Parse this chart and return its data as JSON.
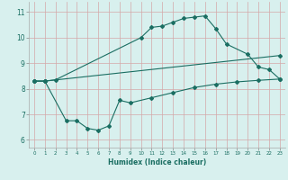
{
  "title": "",
  "xlabel": "Humidex (Indice chaleur)",
  "ylabel": "",
  "xlim": [
    -0.5,
    23.5
  ],
  "ylim": [
    5.7,
    11.4
  ],
  "yticks": [
    6,
    7,
    8,
    9,
    10,
    11
  ],
  "xticks": [
    0,
    1,
    2,
    3,
    4,
    5,
    6,
    7,
    8,
    9,
    10,
    11,
    12,
    13,
    14,
    15,
    16,
    17,
    18,
    19,
    20,
    21,
    22,
    23
  ],
  "bg_color": "#d8f0ee",
  "line_color": "#1a6e62",
  "grid_color_x": "#e8c8c8",
  "grid_color_y": "#e8c8c8",
  "line1_x": [
    0,
    1,
    2,
    10,
    11,
    12,
    13,
    14,
    15,
    16,
    17,
    18,
    20,
    21,
    22,
    23
  ],
  "line1_y": [
    8.3,
    8.3,
    8.35,
    10.0,
    10.4,
    10.45,
    10.6,
    10.75,
    10.8,
    10.85,
    10.35,
    9.75,
    9.35,
    8.85,
    8.75,
    8.38
  ],
  "line2_x": [
    0,
    1,
    23
  ],
  "line2_y": [
    8.3,
    8.3,
    9.3
  ],
  "line3_x": [
    0,
    1,
    3,
    4,
    5,
    6,
    7,
    8,
    9,
    11,
    13,
    15,
    17,
    19,
    21,
    23
  ],
  "line3_y": [
    8.3,
    8.3,
    6.75,
    6.75,
    6.45,
    6.38,
    6.55,
    7.55,
    7.45,
    7.65,
    7.85,
    8.05,
    8.18,
    8.27,
    8.33,
    8.38
  ]
}
